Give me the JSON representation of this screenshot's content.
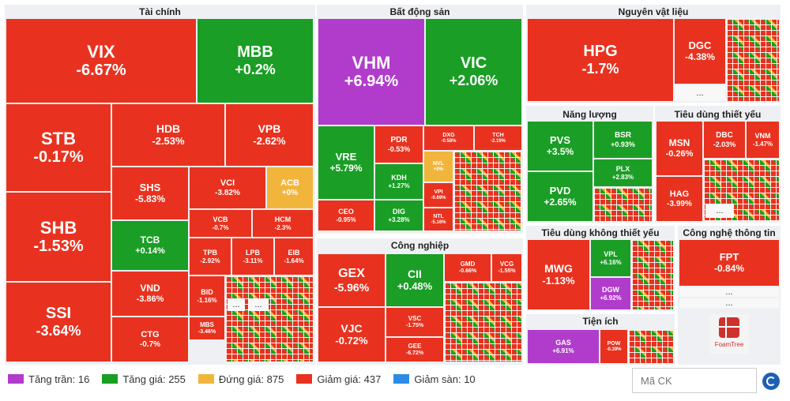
{
  "sectors": {
    "tai_chinh": "Tài chính",
    "bat_dong_san": "Bất động sản",
    "nguyen_vat_lieu": "Nguyên vật liệu",
    "nang_luong": "Năng lượng",
    "tieu_dung_thiet_yeu": "Tiêu dùng thiết yếu",
    "cong_nghiep": "Công nghiệp",
    "tieu_dung_khong_thiet_yeu": "Tiêu dùng không thiết yếu",
    "cong_nghe_thong_tin": "Công nghệ thông tin",
    "tien_ich": "Tiện ích"
  },
  "stocks": {
    "VIX": {
      "ticker": "VIX",
      "pct": "-6.67%"
    },
    "MBB": {
      "ticker": "MBB",
      "pct": "+0.2%"
    },
    "STB": {
      "ticker": "STB",
      "pct": "-0.17%"
    },
    "HDB": {
      "ticker": "HDB",
      "pct": "-2.53%"
    },
    "VPB": {
      "ticker": "VPB",
      "pct": "-2.62%"
    },
    "SHB": {
      "ticker": "SHB",
      "pct": "-1.53%"
    },
    "SHS": {
      "ticker": "SHS",
      "pct": "-5.83%"
    },
    "VCI": {
      "ticker": "VCI",
      "pct": "-3.82%"
    },
    "ACB": {
      "ticker": "ACB",
      "pct": "+0%"
    },
    "VCB": {
      "ticker": "VCB",
      "pct": "-0.7%"
    },
    "HCM": {
      "ticker": "HCM",
      "pct": "-2.3%"
    },
    "TCB": {
      "ticker": "TCB",
      "pct": "+0.14%"
    },
    "TPB": {
      "ticker": "TPB",
      "pct": "-2.92%"
    },
    "LPB": {
      "ticker": "LPB",
      "pct": "-3.11%"
    },
    "EIB": {
      "ticker": "EIB",
      "pct": "-1.64%"
    },
    "SSI": {
      "ticker": "SSI",
      "pct": "-3.64%"
    },
    "VND": {
      "ticker": "VND",
      "pct": "-3.86%"
    },
    "BID": {
      "ticker": "BID",
      "pct": "-1.16%"
    },
    "MBS": {
      "ticker": "MBS",
      "pct": "-3.46%"
    },
    "CTG": {
      "ticker": "CTG",
      "pct": "-0.7%"
    },
    "VHM": {
      "ticker": "VHM",
      "pct": "+6.94%"
    },
    "VIC": {
      "ticker": "VIC",
      "pct": "+2.06%"
    },
    "VRE": {
      "ticker": "VRE",
      "pct": "+5.79%"
    },
    "PDR": {
      "ticker": "PDR",
      "pct": "-0.53%"
    },
    "DXG": {
      "ticker": "DXG",
      "pct": "-0.58%"
    },
    "TCH": {
      "ticker": "TCH",
      "pct": "-2.19%"
    },
    "NVL": {
      "ticker": "NVL",
      "pct": "+0%"
    },
    "KDH": {
      "ticker": "KDH",
      "pct": "+1.27%"
    },
    "VPI": {
      "ticker": "VPI",
      "pct": "-0.69%"
    },
    "CEO": {
      "ticker": "CEO",
      "pct": "-0.95%"
    },
    "DIG": {
      "ticker": "DIG",
      "pct": "+3.28%"
    },
    "NTL": {
      "ticker": "NTL",
      "pct": "-5.16%"
    },
    "HPG": {
      "ticker": "HPG",
      "pct": "-1.7%"
    },
    "DGC": {
      "ticker": "DGC",
      "pct": "-4.38%"
    },
    "PVS": {
      "ticker": "PVS",
      "pct": "+3.5%"
    },
    "BSR": {
      "ticker": "BSR",
      "pct": "+0.93%"
    },
    "PLX": {
      "ticker": "PLX",
      "pct": "+2.83%"
    },
    "PVD": {
      "ticker": "PVD",
      "pct": "+2.65%"
    },
    "MSN": {
      "ticker": "MSN",
      "pct": "-0.26%"
    },
    "DBC": {
      "ticker": "DBC",
      "pct": "-2.03%"
    },
    "VNM": {
      "ticker": "VNM",
      "pct": "-1.47%"
    },
    "HAG": {
      "ticker": "HAG",
      "pct": "-3.99%"
    },
    "GEX": {
      "ticker": "GEX",
      "pct": "-5.96%"
    },
    "CII": {
      "ticker": "CII",
      "pct": "+0.48%"
    },
    "GMD": {
      "ticker": "GMD",
      "pct": "-0.66%"
    },
    "VCG": {
      "ticker": "VCG",
      "pct": "-1.55%"
    },
    "VJC": {
      "ticker": "VJC",
      "pct": "-0.72%"
    },
    "VSC": {
      "ticker": "VSC",
      "pct": "-1.75%"
    },
    "GEE": {
      "ticker": "GEE",
      "pct": "-6.72%"
    },
    "MWG": {
      "ticker": "MWG",
      "pct": "-1.13%"
    },
    "VPL": {
      "ticker": "VPL",
      "pct": "+6.16%"
    },
    "DGW": {
      "ticker": "DGW",
      "pct": "+6.92%"
    },
    "FPT": {
      "ticker": "FPT",
      "pct": "-0.84%"
    },
    "GAS": {
      "ticker": "GAS",
      "pct": "+6.91%"
    },
    "POW": {
      "ticker": "POW",
      "pct": "-0.39%"
    }
  },
  "more": "...",
  "foamtree": "FoamTree",
  "legend": [
    {
      "label": "Tăng trần",
      "count": "16",
      "color": "#b13ccc"
    },
    {
      "label": "Tăng giá",
      "count": "255",
      "color": "#1a9e25"
    },
    {
      "label": "Đứng giá",
      "count": "875",
      "color": "#f2b53c"
    },
    {
      "label": "Giảm giá",
      "count": "437",
      "color": "#e8321f"
    },
    {
      "label": "Giảm sàn",
      "count": "10",
      "color": "#2b8be6"
    }
  ],
  "search": {
    "placeholder": "Mã CK"
  }
}
